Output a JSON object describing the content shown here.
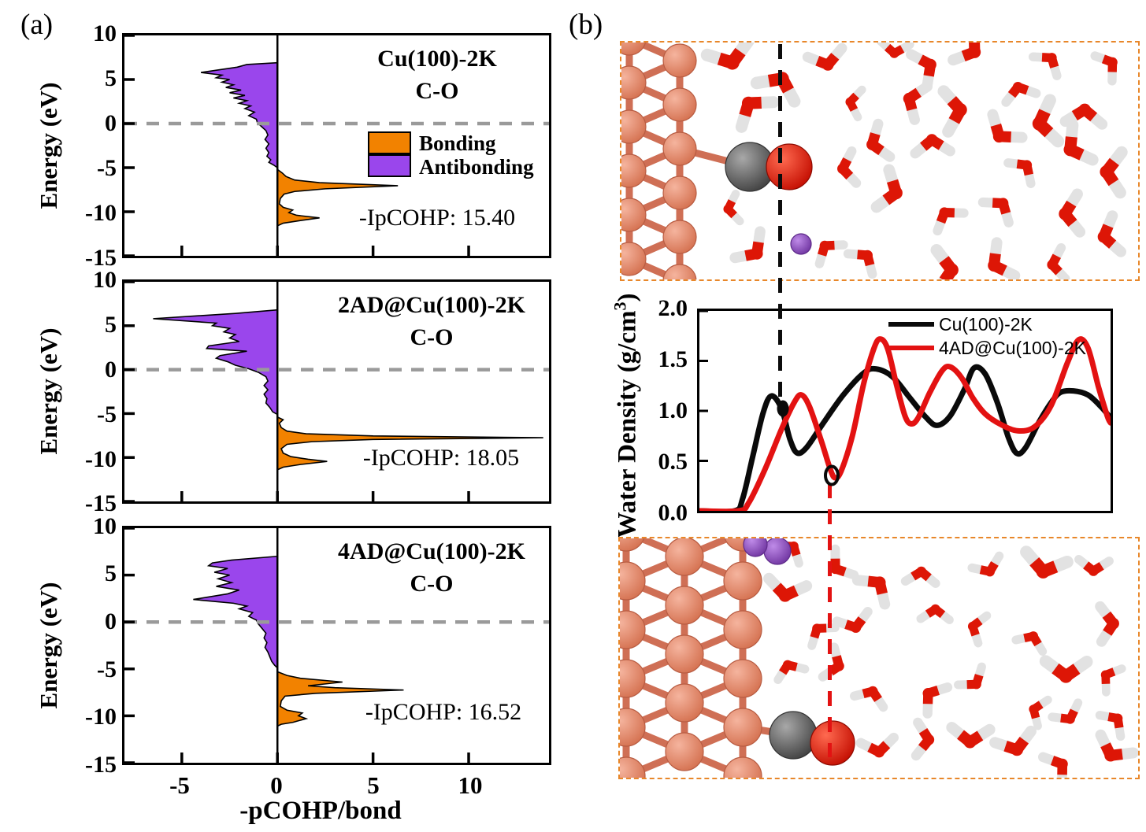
{
  "panel_a": {
    "label": "(a)",
    "ylabel": "Energy (eV)",
    "xlabel": "-pCOHP/bond",
    "y_tick_labels": [
      "10",
      "5",
      "0",
      "-5",
      "-10",
      "-15"
    ],
    "x_tick_labels": [
      "-5",
      "0",
      "5",
      "10"
    ],
    "legend": {
      "bonding": "Bonding",
      "antibonding": "Antibonding"
    },
    "plots": [
      {
        "title1": "Cu(100)-2K",
        "title2": "C-O",
        "ipcohp": "-IpCOHP: 15.40"
      },
      {
        "title1": "2AD@Cu(100)-2K",
        "title2": "C-O",
        "ipcohp": "-IpCOHP: 18.05"
      },
      {
        "title1": "4AD@Cu(100)-2K",
        "title2": "C-O",
        "ipcohp": "-IpCOHP: 16.52"
      }
    ]
  },
  "panel_b": {
    "label": "(b)",
    "density": {
      "ylabel_main": "Water Density (g/cm",
      "ylabel_sup": "3",
      "ylabel_close": ")",
      "y_tick_labels": [
        "2.0",
        "1.5",
        "1.0",
        "0.5",
        "0.0"
      ],
      "legend": [
        {
          "label": "Cu(100)-2K",
          "color": "#0a0a0a"
        },
        {
          "label": "4AD@Cu(100)-2K",
          "color": "#E31212"
        }
      ]
    }
  },
  "colors": {
    "bonding": "#F28200",
    "antibonding": "#9A46EC",
    "fermi_dash": "#9a9a9a",
    "snapshot_border": "#E8872A",
    "guide_black": "#0c0c0c",
    "guide_red": "#E31212",
    "copper": "#E08169",
    "carbon": "#5a5a5a",
    "oxygen": "#DD1606",
    "hydrogen": "#e6e6e6",
    "potassium": "#8B4BB8"
  },
  "chart_data": [
    {
      "type": "area",
      "id": "pcohp-Cu(100)-2K",
      "title": "Cu(100)-2K C-O",
      "annotation": "-IpCOHP: 15.40",
      "ipcohp_value": 15.4,
      "xlabel": "-pCOHP/bond",
      "ylabel": "Energy (eV)",
      "x_range": [
        -8,
        14.2
      ],
      "y_range": [
        -15,
        10
      ],
      "x_ticks": [
        -5,
        0,
        5,
        10
      ],
      "y_ticks": [
        10,
        5,
        0,
        -5,
        -10,
        -15
      ],
      "fermi_level": 0,
      "series": [
        {
          "name": "Antibonding",
          "color": "#9A46EC",
          "points": [
            [
              0,
              6.9
            ],
            [
              -1.6,
              6.7
            ],
            [
              -2.1,
              6.4
            ],
            [
              -4.0,
              5.8
            ],
            [
              -2.9,
              5.5
            ],
            [
              -3.2,
              5.2
            ],
            [
              -2.5,
              5.0
            ],
            [
              -2.9,
              4.7
            ],
            [
              -2.3,
              4.4
            ],
            [
              -2.7,
              4.1
            ],
            [
              -1.9,
              3.8
            ],
            [
              -2.5,
              3.5
            ],
            [
              -1.7,
              3.2
            ],
            [
              -2.3,
              2.9
            ],
            [
              -1.6,
              2.6
            ],
            [
              -2.0,
              2.3
            ],
            [
              -1.4,
              2.0
            ],
            [
              -1.7,
              1.7
            ],
            [
              -1.2,
              1.3
            ],
            [
              -1.5,
              0.9
            ],
            [
              -1.1,
              0.5
            ],
            [
              -1.05,
              0.1
            ],
            [
              -0.85,
              -0.3
            ],
            [
              -0.6,
              -0.8
            ],
            [
              -0.5,
              -1.3
            ],
            [
              -0.65,
              -1.8
            ],
            [
              -0.45,
              -2.3
            ],
            [
              -0.6,
              -2.8
            ],
            [
              -0.45,
              -3.3
            ],
            [
              -0.55,
              -3.7
            ],
            [
              -0.35,
              -4.1
            ],
            [
              -0.45,
              -4.4
            ],
            [
              -0.2,
              -4.7
            ],
            [
              0,
              -5.0
            ]
          ]
        },
        {
          "name": "Bonding",
          "color": "#F28200",
          "points": [
            [
              0,
              -5.2
            ],
            [
              0.25,
              -5.6
            ],
            [
              0.45,
              -6.0
            ],
            [
              0.9,
              -6.4
            ],
            [
              2.2,
              -6.7
            ],
            [
              6.3,
              -7.05
            ],
            [
              2.5,
              -7.4
            ],
            [
              0.9,
              -7.7
            ],
            [
              0.35,
              -8.0
            ],
            [
              0.15,
              -8.5
            ],
            [
              0.1,
              -9.1
            ],
            [
              0.3,
              -9.5
            ],
            [
              0.8,
              -9.8
            ],
            [
              0.6,
              -10.1
            ],
            [
              1.0,
              -10.4
            ],
            [
              2.2,
              -10.7
            ],
            [
              1.2,
              -11.0
            ],
            [
              0.3,
              -11.3
            ],
            [
              0,
              -11.6
            ]
          ]
        }
      ]
    },
    {
      "type": "area",
      "id": "pcohp-2AD@Cu(100)-2K",
      "title": "2AD@Cu(100)-2K C-O",
      "annotation": "-IpCOHP: 18.05",
      "ipcohp_value": 18.05,
      "xlabel": "-pCOHP/bond",
      "ylabel": "Energy (eV)",
      "x_range": [
        -8,
        14.2
      ],
      "y_range": [
        -15,
        10
      ],
      "x_ticks": [
        -5,
        0,
        5,
        10
      ],
      "y_ticks": [
        10,
        5,
        0,
        -5,
        -10,
        -15
      ],
      "fermi_level": 0,
      "series": [
        {
          "name": "Antibonding",
          "color": "#9A46EC",
          "points": [
            [
              0,
              6.8
            ],
            [
              -2.2,
              6.4
            ],
            [
              -6.5,
              5.8
            ],
            [
              -3.2,
              5.3
            ],
            [
              -3.4,
              5.0
            ],
            [
              -2.5,
              4.7
            ],
            [
              -2.8,
              4.3
            ],
            [
              -2.2,
              4.0
            ],
            [
              -2.5,
              3.6
            ],
            [
              -2.0,
              3.2
            ],
            [
              -3.6,
              2.7
            ],
            [
              -3.7,
              2.4
            ],
            [
              -1.6,
              2.1
            ],
            [
              -3.0,
              1.6
            ],
            [
              -3.2,
              1.3
            ],
            [
              -2.6,
              0.9
            ],
            [
              -2.2,
              0.5
            ],
            [
              -1.5,
              0.1
            ],
            [
              -1.0,
              -0.3
            ],
            [
              -0.6,
              -0.8
            ],
            [
              -0.5,
              -1.3
            ],
            [
              -0.7,
              -1.8
            ],
            [
              -0.5,
              -2.3
            ],
            [
              -0.7,
              -2.8
            ],
            [
              -0.55,
              -3.3
            ],
            [
              -0.6,
              -3.8
            ],
            [
              -0.4,
              -4.3
            ],
            [
              -0.25,
              -4.8
            ],
            [
              0,
              -5.1
            ]
          ]
        },
        {
          "name": "Bonding",
          "color": "#F28200",
          "points": [
            [
              0,
              -5.4
            ],
            [
              0.3,
              -5.7
            ],
            [
              0.1,
              -6.1
            ],
            [
              0.2,
              -6.6
            ],
            [
              0.5,
              -7.0
            ],
            [
              1.5,
              -7.3
            ],
            [
              5.0,
              -7.55
            ],
            [
              13.9,
              -7.75
            ],
            [
              5.0,
              -7.95
            ],
            [
              1.8,
              -8.2
            ],
            [
              0.5,
              -8.5
            ],
            [
              0.2,
              -9.0
            ],
            [
              0.3,
              -9.5
            ],
            [
              0.7,
              -9.9
            ],
            [
              1.6,
              -10.2
            ],
            [
              2.6,
              -10.45
            ],
            [
              1.2,
              -10.8
            ],
            [
              0.3,
              -11.1
            ],
            [
              0,
              -11.4
            ]
          ]
        }
      ]
    },
    {
      "type": "area",
      "id": "pcohp-4AD@Cu(100)-2K",
      "title": "4AD@Cu(100)-2K C-O",
      "annotation": "-IpCOHP: 16.52",
      "ipcohp_value": 16.52,
      "xlabel": "-pCOHP/bond",
      "ylabel": "Energy (eV)",
      "x_range": [
        -8,
        14.2
      ],
      "y_range": [
        -15,
        10
      ],
      "x_ticks": [
        -5,
        0,
        5,
        10
      ],
      "y_ticks": [
        10,
        5,
        0,
        -5,
        -10,
        -15
      ],
      "fermi_level": 0,
      "series": [
        {
          "name": "Antibonding",
          "color": "#9A46EC",
          "points": [
            [
              0,
              7.0
            ],
            [
              -2.4,
              6.6
            ],
            [
              -3.4,
              6.3
            ],
            [
              -3.6,
              6.0
            ],
            [
              -2.6,
              5.7
            ],
            [
              -3.3,
              5.3
            ],
            [
              -2.5,
              5.0
            ],
            [
              -3.1,
              4.6
            ],
            [
              -2.4,
              4.2
            ],
            [
              -3.2,
              3.8
            ],
            [
              -2.0,
              3.4
            ],
            [
              -2.6,
              3.0
            ],
            [
              -4.4,
              2.4
            ],
            [
              -2.3,
              2.0
            ],
            [
              -1.6,
              1.7
            ],
            [
              -2.0,
              1.4
            ],
            [
              -1.3,
              1.0
            ],
            [
              -1.5,
              0.6
            ],
            [
              -1.1,
              0.2
            ],
            [
              -1.0,
              -0.2
            ],
            [
              -0.8,
              -0.7
            ],
            [
              -0.6,
              -1.2
            ],
            [
              -0.7,
              -1.7
            ],
            [
              -0.55,
              -2.2
            ],
            [
              -0.65,
              -2.7
            ],
            [
              -0.5,
              -3.2
            ],
            [
              -0.4,
              -3.7
            ],
            [
              -0.3,
              -4.2
            ],
            [
              -0.15,
              -4.6
            ],
            [
              0,
              -4.9
            ]
          ]
        },
        {
          "name": "Bonding",
          "color": "#F28200",
          "points": [
            [
              0,
              -5.3
            ],
            [
              0.5,
              -5.7
            ],
            [
              1.2,
              -6.0
            ],
            [
              3.4,
              -6.4
            ],
            [
              1.6,
              -6.8
            ],
            [
              3.0,
              -7.0
            ],
            [
              6.6,
              -7.25
            ],
            [
              2.0,
              -7.6
            ],
            [
              0.4,
              -7.9
            ],
            [
              0.2,
              -8.4
            ],
            [
              0.15,
              -9.0
            ],
            [
              0.5,
              -9.4
            ],
            [
              1.3,
              -9.7
            ],
            [
              1.1,
              -10.0
            ],
            [
              1.5,
              -10.3
            ],
            [
              0.8,
              -10.7
            ],
            [
              0.2,
              -10.9
            ],
            [
              0,
              -11.1
            ]
          ]
        }
      ]
    },
    {
      "type": "line",
      "id": "water-density",
      "ylabel": "Water Density (g/cm3)",
      "y_range": [
        0,
        2
      ],
      "y_ticks": [
        2.0,
        1.5,
        1.0,
        0.5,
        0.0
      ],
      "x_axis": "distance from surface (normalized 0-1, no ticks shown)",
      "legend_position": "top-right",
      "series": [
        {
          "name": "Cu(100)-2K",
          "color": "#0a0a0a",
          "points": [
            [
              0,
              0
            ],
            [
              0.085,
              0
            ],
            [
              0.105,
              0.12
            ],
            [
              0.13,
              0.55
            ],
            [
              0.155,
              0.98
            ],
            [
              0.175,
              1.15
            ],
            [
              0.2,
              1.02
            ],
            [
              0.22,
              0.72
            ],
            [
              0.237,
              0.58
            ],
            [
              0.26,
              0.63
            ],
            [
              0.3,
              0.87
            ],
            [
              0.35,
              1.16
            ],
            [
              0.4,
              1.38
            ],
            [
              0.43,
              1.42
            ],
            [
              0.47,
              1.34
            ],
            [
              0.51,
              1.14
            ],
            [
              0.55,
              0.94
            ],
            [
              0.578,
              0.855
            ],
            [
              0.61,
              0.95
            ],
            [
              0.645,
              1.22
            ],
            [
              0.668,
              1.43
            ],
            [
              0.695,
              1.37
            ],
            [
              0.725,
              1.08
            ],
            [
              0.752,
              0.73
            ],
            [
              0.772,
              0.575
            ],
            [
              0.793,
              0.63
            ],
            [
              0.825,
              0.88
            ],
            [
              0.855,
              1.08
            ],
            [
              0.878,
              1.185
            ],
            [
              0.91,
              1.2
            ],
            [
              0.945,
              1.16
            ],
            [
              0.975,
              1.05
            ],
            [
              1,
              0.93
            ]
          ]
        },
        {
          "name": "4AD@Cu(100)-2K",
          "color": "#E31212",
          "points": [
            [
              0,
              0
            ],
            [
              0.095,
              0
            ],
            [
              0.12,
              0.08
            ],
            [
              0.16,
              0.42
            ],
            [
              0.2,
              0.82
            ],
            [
              0.23,
              1.08
            ],
            [
              0.248,
              1.16
            ],
            [
              0.268,
              1.04
            ],
            [
              0.298,
              0.68
            ],
            [
              0.318,
              0.42
            ],
            [
              0.33,
              0.33
            ],
            [
              0.345,
              0.4
            ],
            [
              0.372,
              0.75
            ],
            [
              0.4,
              1.28
            ],
            [
              0.425,
              1.63
            ],
            [
              0.44,
              1.72
            ],
            [
              0.458,
              1.62
            ],
            [
              0.48,
              1.25
            ],
            [
              0.5,
              0.95
            ],
            [
              0.515,
              0.87
            ],
            [
              0.532,
              0.93
            ],
            [
              0.56,
              1.18
            ],
            [
              0.59,
              1.4
            ],
            [
              0.61,
              1.44
            ],
            [
              0.638,
              1.33
            ],
            [
              0.665,
              1.13
            ],
            [
              0.695,
              0.97
            ],
            [
              0.735,
              0.86
            ],
            [
              0.775,
              0.8
            ],
            [
              0.815,
              0.84
            ],
            [
              0.855,
              1.05
            ],
            [
              0.895,
              1.48
            ],
            [
              0.922,
              1.71
            ],
            [
              0.945,
              1.63
            ],
            [
              0.97,
              1.25
            ],
            [
              0.992,
              0.95
            ],
            [
              1,
              0.88
            ]
          ]
        }
      ],
      "markers": [
        {
          "type": "filled-dot",
          "series": "Cu(100)-2K",
          "x": 0.203,
          "y": 1.03
        },
        {
          "type": "open-circle",
          "series": "4AD@Cu(100)-2K",
          "x": 0.322,
          "y": 0.35
        }
      ]
    }
  ]
}
